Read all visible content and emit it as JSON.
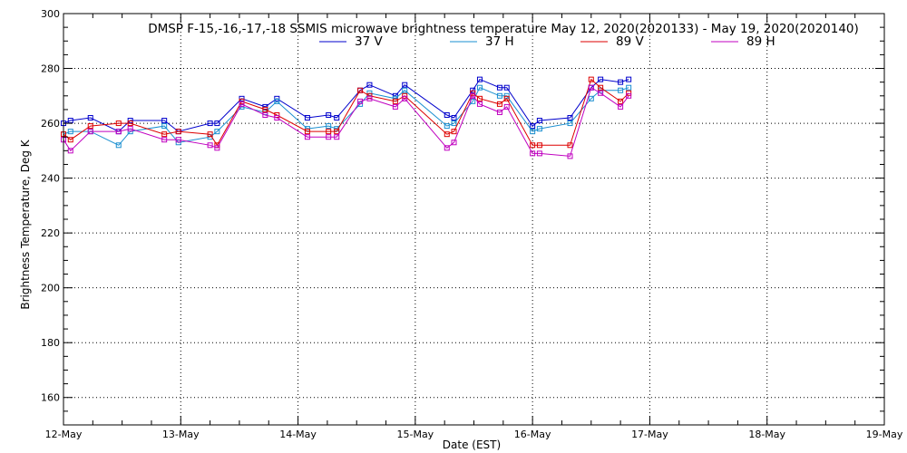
{
  "chart_data": {
    "type": "line",
    "title": "DMSP F-15,-16,-17,-18 SSMIS microwave brightness temperature May 12, 2020(2020133) - May 19, 2020(2020140)",
    "xlabel": "Date (EST)",
    "ylabel": "Brightness Temperature, Deg K",
    "xlim": [
      0,
      7
    ],
    "ylim": [
      150,
      300
    ],
    "yticks": [
      160,
      180,
      200,
      220,
      240,
      260,
      280,
      300
    ],
    "xticks": [
      {
        "pos": 0,
        "label": "12-May"
      },
      {
        "pos": 1,
        "label": "13-May"
      },
      {
        "pos": 2,
        "label": "14-May"
      },
      {
        "pos": 3,
        "label": "15-May"
      },
      {
        "pos": 4,
        "label": "16-May"
      },
      {
        "pos": 5,
        "label": "17-May"
      },
      {
        "pos": 6,
        "label": "18-May"
      },
      {
        "pos": 7,
        "label": "19-May"
      }
    ],
    "grid": true,
    "legend_position": "top-center",
    "series": [
      {
        "name": "37 V",
        "color": "#0000cc",
        "x": [
          0,
          0.06,
          0.23,
          0.47,
          0.57,
          0.86,
          0.98,
          1.25,
          1.31,
          1.52,
          1.72,
          1.82,
          2.08,
          2.26,
          2.33,
          2.53,
          2.61,
          2.83,
          2.91,
          3.27,
          3.33,
          3.49,
          3.55,
          3.72,
          3.78,
          4.0,
          4.06,
          4.32,
          4.5,
          4.58,
          4.75,
          4.82
        ],
        "values": [
          260,
          261,
          262,
          257,
          261,
          261,
          257,
          260,
          260,
          269,
          266,
          269,
          262,
          263,
          262,
          272,
          274,
          270,
          274,
          263,
          262,
          272,
          276,
          273,
          273,
          259,
          261,
          262,
          273,
          276,
          275,
          276
        ]
      },
      {
        "name": "37 H",
        "color": "#1a8fd0",
        "x": [
          0,
          0.06,
          0.23,
          0.47,
          0.57,
          0.86,
          0.98,
          1.25,
          1.31,
          1.52,
          1.72,
          1.82,
          2.08,
          2.26,
          2.33,
          2.53,
          2.61,
          2.83,
          2.91,
          3.27,
          3.33,
          3.49,
          3.55,
          3.72,
          3.78,
          4.0,
          4.06,
          4.32,
          4.5,
          4.58,
          4.75,
          4.82
        ],
        "values": [
          256,
          257,
          257,
          252,
          257,
          259,
          253,
          255,
          257,
          266,
          264,
          268,
          258,
          259,
          258,
          267,
          271,
          269,
          272,
          259,
          260,
          268,
          273,
          270,
          270,
          257,
          258,
          260,
          269,
          272,
          272,
          273
        ]
      },
      {
        "name": "89 V",
        "color": "#dd0000",
        "x": [
          0,
          0.06,
          0.23,
          0.47,
          0.57,
          0.86,
          0.98,
          1.25,
          1.31,
          1.52,
          1.72,
          1.82,
          2.08,
          2.26,
          2.33,
          2.53,
          2.61,
          2.83,
          2.91,
          3.27,
          3.33,
          3.49,
          3.55,
          3.72,
          3.78,
          4.0,
          4.06,
          4.32,
          4.5,
          4.58,
          4.75,
          4.82
        ],
        "values": [
          256,
          254,
          259,
          260,
          260,
          256,
          257,
          256,
          252,
          268,
          265,
          263,
          257,
          257,
          257,
          272,
          270,
          268,
          270,
          256,
          257,
          271,
          269,
          267,
          269,
          252,
          252,
          252,
          276,
          273,
          268,
          271
        ]
      },
      {
        "name": "89 H",
        "color": "#c000c0",
        "x": [
          0,
          0.06,
          0.23,
          0.47,
          0.57,
          0.86,
          0.98,
          1.25,
          1.31,
          1.52,
          1.72,
          1.82,
          2.08,
          2.26,
          2.33,
          2.53,
          2.61,
          2.83,
          2.91,
          3.27,
          3.33,
          3.49,
          3.55,
          3.72,
          3.78,
          4.0,
          4.06,
          4.32,
          4.5,
          4.58,
          4.75,
          4.82
        ],
        "values": [
          254,
          250,
          257,
          257,
          258,
          254,
          254,
          252,
          251,
          267,
          263,
          262,
          255,
          255,
          255,
          268,
          269,
          266,
          269,
          251,
          253,
          270,
          267,
          264,
          266,
          249,
          249,
          248,
          273,
          271,
          266,
          270
        ]
      }
    ]
  }
}
